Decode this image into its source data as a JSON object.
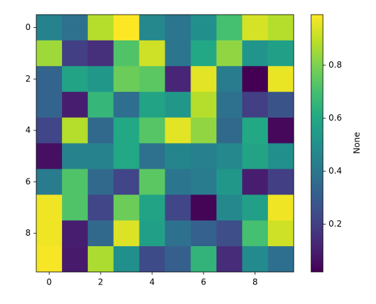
{
  "chart_data": {
    "type": "heatmap",
    "colormap": "viridis",
    "matrix": [
      [
        0.45,
        0.38,
        0.88,
        0.99,
        0.47,
        0.4,
        0.5,
        0.7,
        0.93,
        0.88
      ],
      [
        0.85,
        0.2,
        0.15,
        0.72,
        0.92,
        0.4,
        0.6,
        0.83,
        0.52,
        0.57
      ],
      [
        0.33,
        0.58,
        0.53,
        0.77,
        0.74,
        0.12,
        0.95,
        0.42,
        0.02,
        0.96
      ],
      [
        0.33,
        0.1,
        0.66,
        0.37,
        0.58,
        0.53,
        0.88,
        0.38,
        0.2,
        0.27
      ],
      [
        0.22,
        0.88,
        0.35,
        0.6,
        0.73,
        0.95,
        0.83,
        0.35,
        0.6,
        0.04
      ],
      [
        0.06,
        0.45,
        0.45,
        0.6,
        0.38,
        0.46,
        0.44,
        0.47,
        0.58,
        0.5
      ],
      [
        0.42,
        0.72,
        0.35,
        0.22,
        0.74,
        0.4,
        0.42,
        0.53,
        0.1,
        0.2
      ],
      [
        0.97,
        0.72,
        0.22,
        0.77,
        0.58,
        0.22,
        0.03,
        0.47,
        0.57,
        0.97
      ],
      [
        0.97,
        0.1,
        0.35,
        0.94,
        0.57,
        0.38,
        0.32,
        0.25,
        0.7,
        0.92
      ],
      [
        0.98,
        0.09,
        0.87,
        0.5,
        0.24,
        0.31,
        0.65,
        0.14,
        0.48,
        0.37
      ]
    ],
    "xlim": [
      -0.5,
      9.5
    ],
    "ylim": [
      9.5,
      -0.5
    ],
    "xticks": [
      0,
      2,
      4,
      6,
      8
    ],
    "yticks": [
      0,
      2,
      4,
      6,
      8
    ],
    "colorbar": {
      "label": "None",
      "clim": [
        0.02,
        0.99
      ],
      "ticks": [
        0.2,
        0.4,
        0.6,
        0.8
      ]
    }
  }
}
